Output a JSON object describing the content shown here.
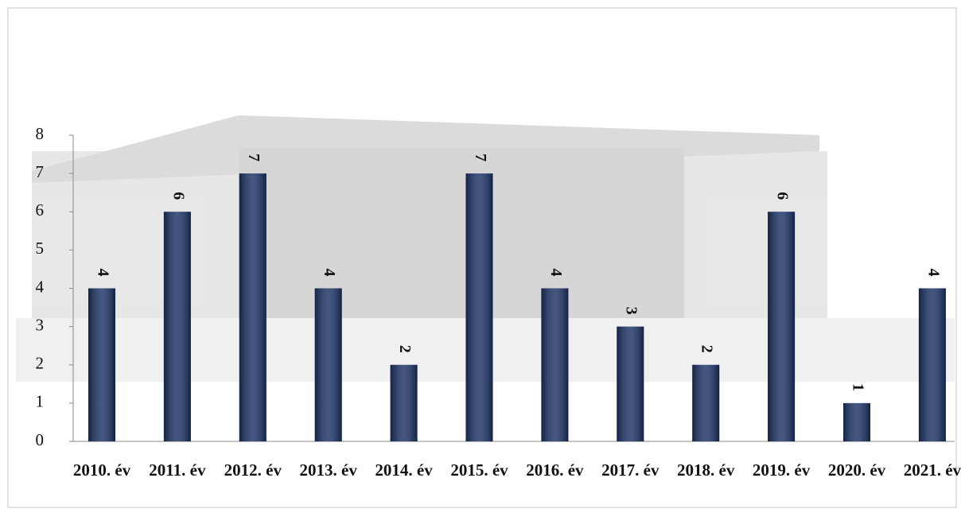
{
  "chart_data": {
    "type": "bar",
    "categories": [
      "2010. év",
      "2011. év",
      "2012. év",
      "2013. év",
      "2014. év",
      "2015. év",
      "2016. év",
      "2017. év",
      "2018. év",
      "2019. év",
      "2020. év",
      "2021. év"
    ],
    "values": [
      4,
      6,
      7,
      4,
      2,
      7,
      4,
      3,
      2,
      6,
      1,
      4
    ],
    "color": "#1b3266",
    "ylim": [
      0,
      8
    ],
    "yticks": [
      0,
      1,
      2,
      3,
      4,
      5,
      6,
      7,
      8
    ]
  }
}
